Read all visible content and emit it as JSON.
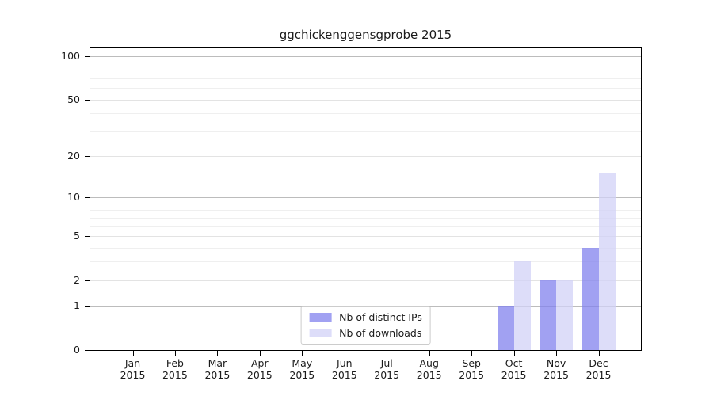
{
  "chart_data": {
    "type": "bar",
    "title": "ggchickenggensgprobe 2015",
    "categories": [
      "Jan",
      "Feb",
      "Mar",
      "Apr",
      "May",
      "Jun",
      "Jul",
      "Aug",
      "Sep",
      "Oct",
      "Nov",
      "Dec"
    ],
    "year_label": "2015",
    "series": [
      {
        "name": "Nb of distinct IPs",
        "color": "#8282ee",
        "alpha": 0.75,
        "values": [
          0,
          0,
          0,
          0,
          0,
          0,
          0,
          0,
          0,
          1,
          2,
          4
        ]
      },
      {
        "name": "Nb of downloads",
        "color": "#d2d2f7",
        "alpha": 0.75,
        "values": [
          0,
          0,
          0,
          0,
          0,
          0,
          0,
          0,
          0,
          3,
          2,
          15
        ]
      }
    ],
    "yscale": "log10(1+x)",
    "ylim": [
      0,
      113
    ],
    "y_ticks": [
      0,
      1,
      2,
      5,
      10,
      20,
      50,
      100
    ],
    "y_minor_ticks": [
      3,
      4,
      6,
      7,
      8,
      9,
      30,
      40,
      60,
      70,
      80,
      90
    ],
    "grid": true,
    "legend_position": "lower center inside"
  },
  "colors": {
    "background": "#ffffff",
    "spine": "#000000",
    "text": "#1a1a1a",
    "gridline_major": "#e3e3e3",
    "gridline_minor": "#efefef",
    "gridline_decade": "#bcbcbc",
    "legend_border": "#cccccc",
    "legend_background": "#ffffff"
  }
}
